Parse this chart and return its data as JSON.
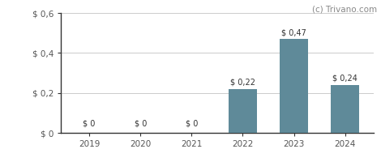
{
  "categories": [
    "2019",
    "2020",
    "2021",
    "2022",
    "2023",
    "2024"
  ],
  "values": [
    0,
    0,
    0,
    0.22,
    0.47,
    0.24
  ],
  "labels": [
    "$ 0",
    "$ 0",
    "$ 0",
    "$ 0,22",
    "$ 0,47",
    "$ 0,24"
  ],
  "bar_color": "#5f8a99",
  "ylim": [
    0,
    0.6
  ],
  "yticks": [
    0,
    0.2,
    0.4,
    0.6
  ],
  "ytick_labels": [
    "$ 0",
    "$ 0,2",
    "$ 0,4",
    "$ 0,6"
  ],
  "watermark": "(c) Trivano.com",
  "background_color": "#ffffff",
  "grid_color": "#cccccc",
  "axis_color": "#333333",
  "label_color": "#333333",
  "tick_label_color": "#555555",
  "bar_width": 0.55,
  "label_fontsize": 7,
  "tick_fontsize": 7.5,
  "watermark_fontsize": 7.5,
  "watermark_color": "#888888"
}
